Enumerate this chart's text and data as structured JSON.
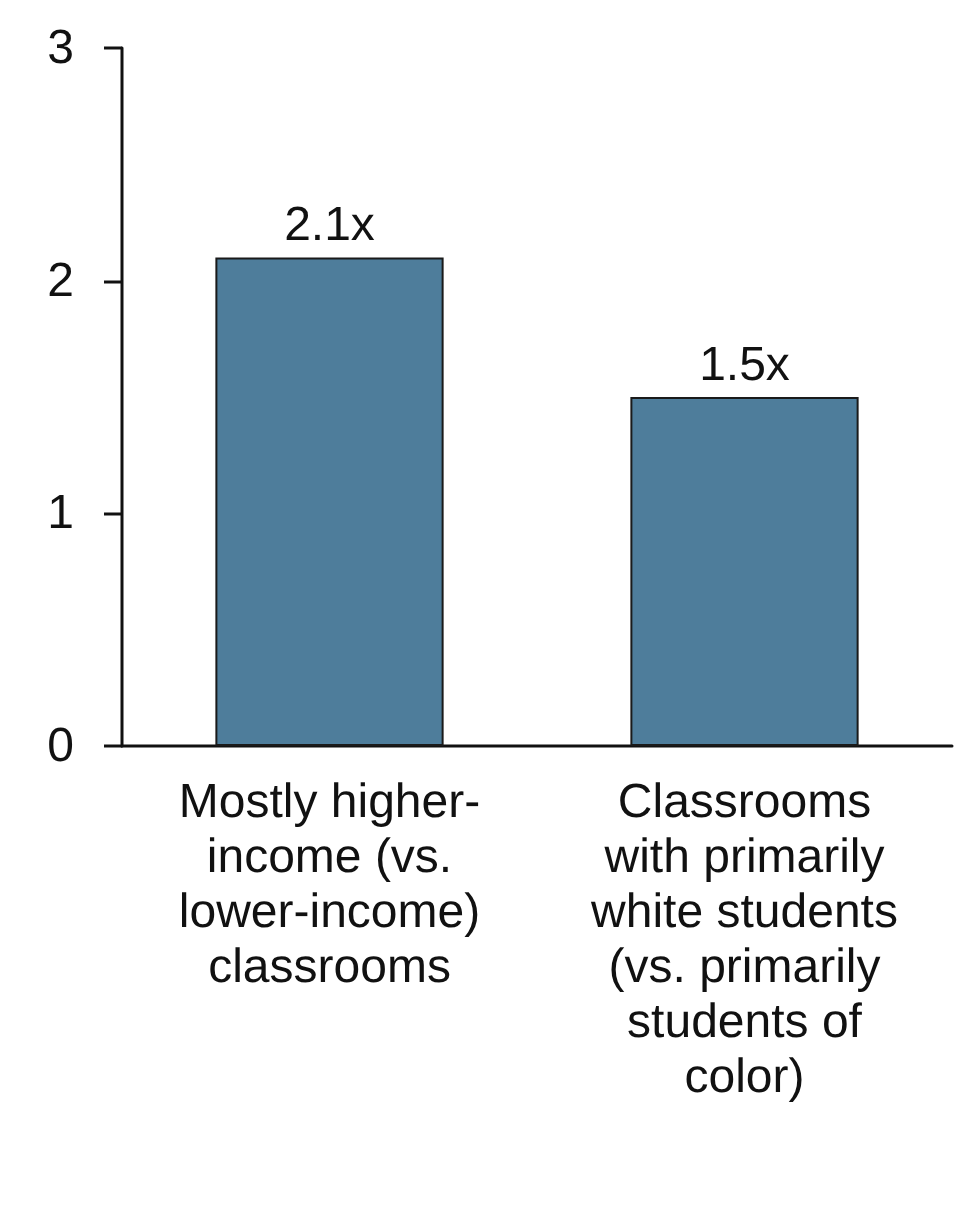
{
  "chart_data": {
    "type": "bar",
    "categories": [
      "Mostly higher-income (vs. lower-income) classrooms",
      "Classrooms with primarily white students (vs. primarily students of color)"
    ],
    "values": [
      2.1,
      1.5
    ],
    "value_labels": [
      "2.1x",
      "1.5x"
    ],
    "color": "#4e7d9b",
    "ylim": [
      0,
      3
    ],
    "yticks": [
      0,
      1,
      2,
      3
    ],
    "grid": false
  }
}
